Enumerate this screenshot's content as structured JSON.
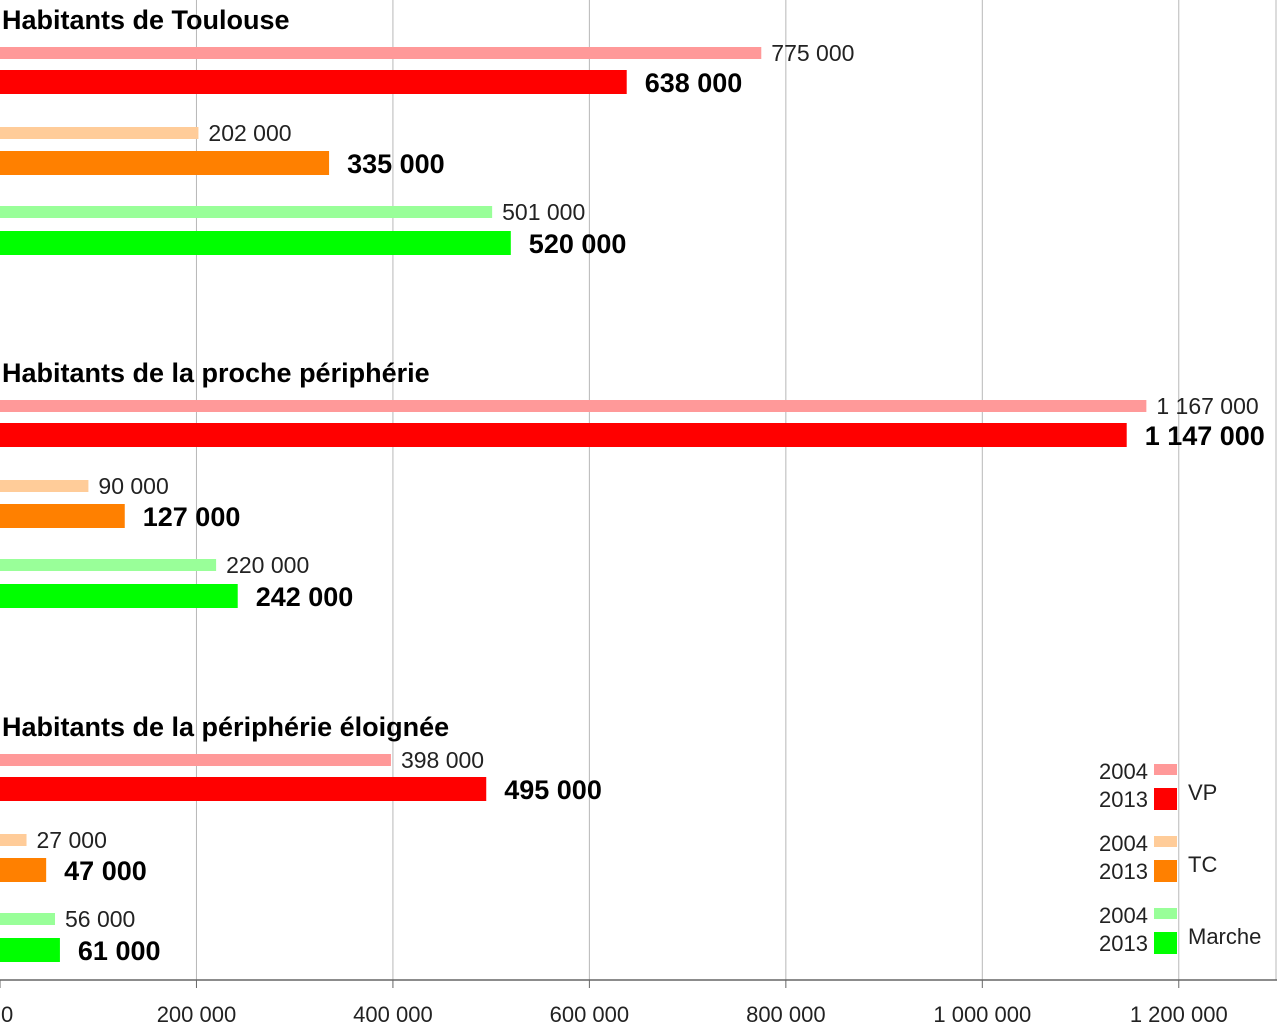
{
  "chart_data": {
    "type": "bar",
    "orientation": "horizontal",
    "xlim": [
      0,
      1300000
    ],
    "x_ticks": [
      0,
      200000,
      400000,
      600000,
      800000,
      1000000,
      1200000
    ],
    "x_tick_labels": [
      "0",
      "200 000",
      "400 000",
      "600 000",
      "800 000",
      "1 000 000",
      "1 200 000"
    ],
    "grid": "vertical",
    "groups": [
      {
        "title": "Habitants de Toulouse",
        "modes": [
          {
            "mode": "VP",
            "v2004": 775000,
            "l2004": "775 000",
            "v2013": 638000,
            "l2013": "638 000"
          },
          {
            "mode": "TC",
            "v2004": 202000,
            "l2004": "202 000",
            "v2013": 335000,
            "l2013": "335 000"
          },
          {
            "mode": "Marche",
            "v2004": 501000,
            "l2004": "501 000",
            "v2013": 520000,
            "l2013": "520 000"
          }
        ]
      },
      {
        "title": "Habitants de la proche périphérie",
        "modes": [
          {
            "mode": "VP",
            "v2004": 1167000,
            "l2004": "1 167 000",
            "v2013": 1147000,
            "l2013": "1 147 000"
          },
          {
            "mode": "TC",
            "v2004": 90000,
            "l2004": "90 000",
            "v2013": 127000,
            "l2013": "127 000"
          },
          {
            "mode": "Marche",
            "v2004": 220000,
            "l2004": "220 000",
            "v2013": 242000,
            "l2013": "242 000"
          }
        ]
      },
      {
        "title": "Habitants de la périphérie éloignée",
        "modes": [
          {
            "mode": "VP",
            "v2004": 398000,
            "l2004": "398 000",
            "v2013": 495000,
            "l2013": "495 000"
          },
          {
            "mode": "TC",
            "v2004": 27000,
            "l2004": "27 000",
            "v2013": 47000,
            "l2013": "47 000"
          },
          {
            "mode": "Marche",
            "v2004": 56000,
            "l2004": "56 000",
            "v2013": 61000,
            "l2013": "61 000"
          }
        ]
      }
    ],
    "legend": {
      "placement": "bottom-right",
      "years": [
        "2004",
        "2013"
      ],
      "series": [
        "VP",
        "TC",
        "Marche"
      ]
    },
    "colors": {
      "VP": {
        "2004": "#ff9999",
        "2013": "#ff0000"
      },
      "TC": {
        "2004": "#ffcc99",
        "2013": "#ff8000"
      },
      "Marche": {
        "2004": "#99ff99",
        "2013": "#00ff00"
      }
    }
  }
}
